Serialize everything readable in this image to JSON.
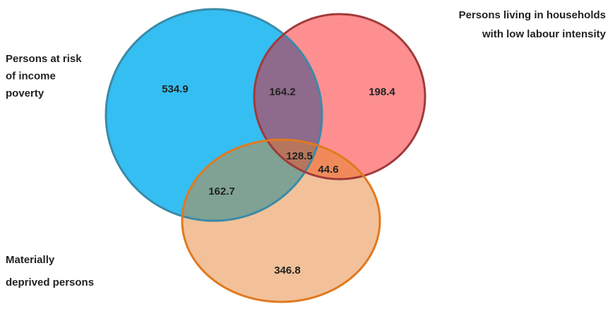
{
  "sets": [
    {
      "label_lines": [
        "Persons at risk",
        "of income",
        "poverty"
      ]
    },
    {
      "label_lines": [
        "Persons living in households",
        "with low labour intensity"
      ]
    },
    {
      "label_lines": [
        "Materially",
        "deprived persons"
      ]
    }
  ],
  "regions": [
    {
      "value": 534.9
    },
    {
      "value": 164.2
    },
    {
      "value": 198.4
    },
    {
      "value": 128.5
    },
    {
      "value": 44.6
    },
    {
      "value": 162.7
    },
    {
      "value": 346.8
    }
  ]
}
